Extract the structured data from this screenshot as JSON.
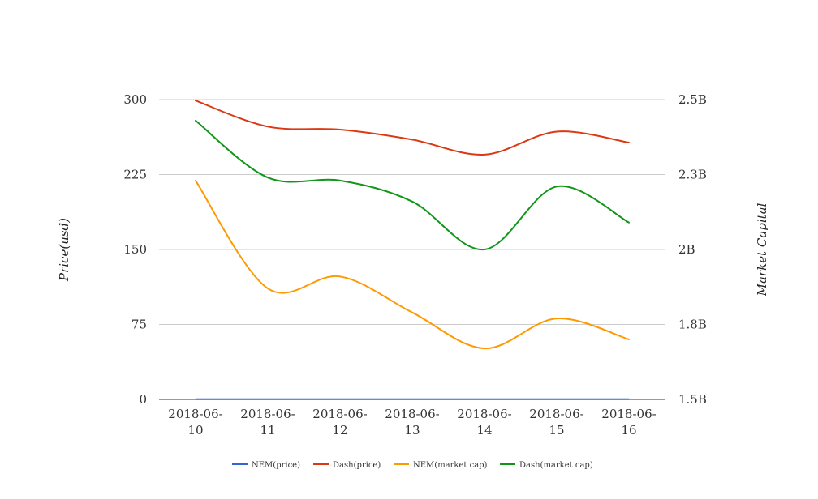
{
  "chart_data": {
    "type": "line",
    "x": [
      "2018-06-10",
      "2018-06-11",
      "2018-06-12",
      "2018-06-13",
      "2018-06-14",
      "2018-06-15",
      "2018-06-16"
    ],
    "x_tick_lines": [
      [
        "2018-06-",
        "10"
      ],
      [
        "2018-06-",
        "11"
      ],
      [
        "2018-06-",
        "12"
      ],
      [
        "2018-06-",
        "13"
      ],
      [
        "2018-06-",
        "14"
      ],
      [
        "2018-06-",
        "15"
      ],
      [
        "2018-06-",
        "16"
      ]
    ],
    "ylabel_left": "Price(usd)",
    "ylabel_right": "Market Capital",
    "ylim_left": [
      0,
      300
    ],
    "ylim_right": [
      1500000000,
      2500000000
    ],
    "yticks_left": [
      "0",
      "75",
      "150",
      "225",
      "300"
    ],
    "yticks_right": [
      "1.5B",
      "1.8B",
      "2B",
      "2.3B",
      "2.5B"
    ],
    "grid": true,
    "legend_position": "bottom",
    "series": [
      {
        "name": "NEM(price)",
        "axis": "left",
        "color": "#3366cc",
        "values": [
          0.21,
          0.18,
          0.2,
          0.18,
          0.16,
          0.18,
          0.16
        ]
      },
      {
        "name": "Dash(price)",
        "axis": "left",
        "color": "#dc3912",
        "values": [
          299,
          273,
          270,
          260,
          245,
          268,
          257
        ]
      },
      {
        "name": "NEM(market cap)",
        "axis": "right",
        "color": "#ff9900",
        "values": [
          2230000000,
          1870000000,
          1910000000,
          1790000000,
          1670000000,
          1770000000,
          1700000000
        ]
      },
      {
        "name": "Dash(market cap)",
        "axis": "right",
        "color": "#109618",
        "values": [
          2430000000,
          2240000000,
          2230000000,
          2160000000,
          2000000000,
          2210000000,
          2090000000
        ]
      }
    ]
  }
}
